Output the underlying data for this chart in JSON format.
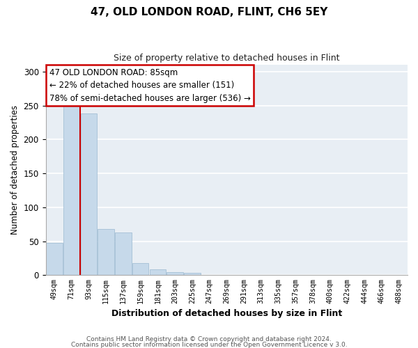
{
  "title": "47, OLD LONDON ROAD, FLINT, CH6 5EY",
  "subtitle": "Size of property relative to detached houses in Flint",
  "xlabel": "Distribution of detached houses by size in Flint",
  "ylabel": "Number of detached properties",
  "bar_labels": [
    "49sqm",
    "71sqm",
    "93sqm",
    "115sqm",
    "137sqm",
    "159sqm",
    "181sqm",
    "203sqm",
    "225sqm",
    "247sqm",
    "269sqm",
    "291sqm",
    "313sqm",
    "335sqm",
    "357sqm",
    "378sqm",
    "400sqm",
    "422sqm",
    "444sqm",
    "466sqm",
    "488sqm"
  ],
  "bar_values": [
    48,
    251,
    238,
    68,
    63,
    18,
    9,
    4,
    3,
    0,
    0,
    0,
    0,
    0,
    0,
    0,
    0,
    0,
    0,
    0,
    0
  ],
  "bar_color": "#c6d9ea",
  "bar_edge_color": "#9ab8d0",
  "redline_x": 1.5,
  "ylim": [
    0,
    310
  ],
  "yticks": [
    0,
    50,
    100,
    150,
    200,
    250,
    300
  ],
  "annotation_title": "47 OLD LONDON ROAD: 85sqm",
  "annotation_line1": "← 22% of detached houses are smaller (151)",
  "annotation_line2": "78% of semi-detached houses are larger (536) →",
  "footer_line1": "Contains HM Land Registry data © Crown copyright and database right 2024.",
  "footer_line2": "Contains public sector information licensed under the Open Government Licence v 3.0.",
  "background_color": "#ffffff",
  "axes_facecolor": "#e8eef4"
}
